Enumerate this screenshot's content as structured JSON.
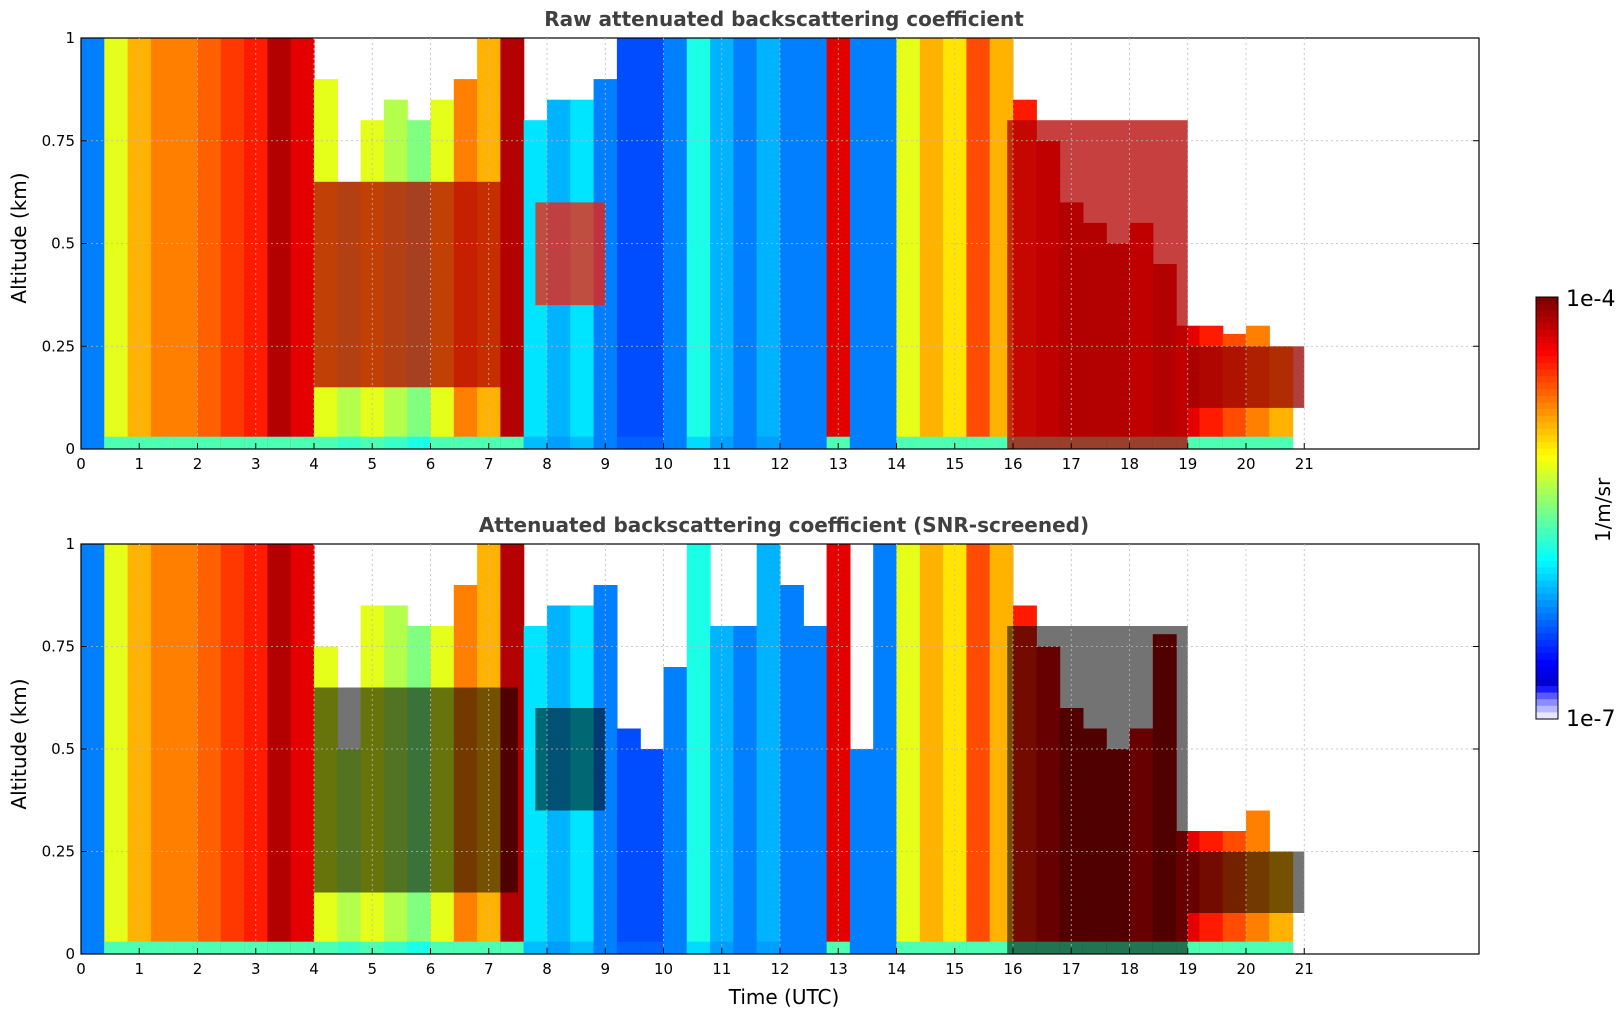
{
  "chart_data": [
    {
      "type": "heatmap",
      "title": "Raw attenuated backscattering coefficient",
      "xlabel": "",
      "ylabel": "Altitude (km)",
      "xlim": [
        0,
        24
      ],
      "ylim": [
        0,
        1
      ],
      "x_ticks": [
        "0",
        "1",
        "2",
        "3",
        "4",
        "5",
        "6",
        "7",
        "8",
        "9",
        "10",
        "11",
        "12",
        "13",
        "14",
        "15",
        "16",
        "17",
        "18",
        "19",
        "20",
        "21"
      ],
      "y_ticks": [
        "0",
        "0.25",
        "0.5",
        "0.75",
        "1"
      ],
      "grid": true,
      "data_end_time": 21,
      "masked_black": false,
      "time_hours": [
        0.2,
        0.6,
        1.0,
        1.4,
        1.8,
        2.2,
        2.6,
        3.0,
        3.4,
        3.8,
        4.2,
        4.6,
        5.0,
        5.4,
        5.8,
        6.2,
        6.6,
        7.0,
        7.4,
        7.8,
        8.2,
        8.6,
        9.0,
        9.4,
        9.8,
        10.2,
        10.6,
        11.0,
        11.4,
        11.8,
        12.2,
        12.6,
        13.0,
        13.4,
        13.8,
        14.2,
        14.6,
        15.0,
        15.4,
        15.8,
        16.2,
        16.6,
        17.0,
        17.4,
        17.8,
        18.2,
        18.6,
        19.0,
        19.4,
        19.8,
        20.2,
        20.6
      ],
      "band_level": [
        0.25,
        0.6,
        0.7,
        0.75,
        0.75,
        0.78,
        0.82,
        0.85,
        0.95,
        0.9,
        0.6,
        0.55,
        0.6,
        0.55,
        0.5,
        0.6,
        0.75,
        0.7,
        0.95,
        0.35,
        0.3,
        0.35,
        0.25,
        0.2,
        0.2,
        0.25,
        0.4,
        0.3,
        0.25,
        0.3,
        0.25,
        0.25,
        0.9,
        0.25,
        0.25,
        0.6,
        0.7,
        0.65,
        0.8,
        0.7,
        0.85,
        0.9,
        0.95,
        0.95,
        0.95,
        0.9,
        0.95,
        0.9,
        0.85,
        0.8,
        0.75,
        0.7
      ],
      "cloud_layers": [
        {
          "t_start": 4.0,
          "t_end": 7.5,
          "base_km": 0.15,
          "top_km": 0.65,
          "level": 0.95
        },
        {
          "t_start": 7.8,
          "t_end": 9.0,
          "base_km": 0.35,
          "top_km": 0.6,
          "level": 0.85
        },
        {
          "t_start": 15.9,
          "t_end": 19.0,
          "base_km": 0.0,
          "top_km": 0.8,
          "level": 0.95
        },
        {
          "t_start": 19.0,
          "t_end": 21.0,
          "base_km": 0.1,
          "top_km": 0.25,
          "level": 0.98
        }
      ],
      "signal_top_km": [
        1,
        1,
        1,
        1,
        1,
        1,
        1,
        1,
        1,
        1,
        0.9,
        0.65,
        0.8,
        0.85,
        0.8,
        0.85,
        0.9,
        1,
        1,
        0.8,
        0.85,
        0.85,
        0.9,
        1,
        1,
        1,
        1,
        1,
        1,
        1,
        1,
        1,
        1,
        1,
        1,
        1,
        1,
        1,
        1,
        1,
        0.85,
        0.75,
        0.6,
        0.55,
        0.5,
        0.55,
        0.45,
        0.3,
        0.3,
        0.28,
        0.3,
        0.25
      ]
    },
    {
      "type": "heatmap",
      "title": "Attenuated backscattering coefficient (SNR-screened)",
      "xlabel": "Time (UTC)",
      "ylabel": "Altitude (km)",
      "xlim": [
        0,
        24
      ],
      "ylim": [
        0,
        1
      ],
      "x_ticks": [
        "0",
        "1",
        "2",
        "3",
        "4",
        "5",
        "6",
        "7",
        "8",
        "9",
        "10",
        "11",
        "12",
        "13",
        "14",
        "15",
        "16",
        "17",
        "18",
        "19",
        "20",
        "21"
      ],
      "y_ticks": [
        "0",
        "0.25",
        "0.5",
        "0.75",
        "1"
      ],
      "grid": true,
      "data_end_time": 21,
      "masked_black": true,
      "time_hours": [
        0.2,
        0.6,
        1.0,
        1.4,
        1.8,
        2.2,
        2.6,
        3.0,
        3.4,
        3.8,
        4.2,
        4.6,
        5.0,
        5.4,
        5.8,
        6.2,
        6.6,
        7.0,
        7.4,
        7.8,
        8.2,
        8.6,
        9.0,
        9.4,
        9.8,
        10.2,
        10.6,
        11.0,
        11.4,
        11.8,
        12.2,
        12.6,
        13.0,
        13.4,
        13.8,
        14.2,
        14.6,
        15.0,
        15.4,
        15.8,
        16.2,
        16.6,
        17.0,
        17.4,
        17.8,
        18.2,
        18.6,
        19.0,
        19.4,
        19.8,
        20.2,
        20.6
      ],
      "band_level": [
        0.25,
        0.6,
        0.7,
        0.75,
        0.75,
        0.78,
        0.82,
        0.85,
        0.95,
        0.9,
        0.6,
        0.55,
        0.6,
        0.55,
        0.5,
        0.6,
        0.75,
        0.7,
        0.95,
        0.35,
        0.3,
        0.35,
        0.25,
        0.2,
        0.2,
        0.25,
        0.4,
        0.3,
        0.25,
        0.3,
        0.25,
        0.25,
        0.9,
        0.25,
        0.25,
        0.6,
        0.7,
        0.65,
        0.8,
        0.7,
        0.85,
        0.9,
        0.95,
        0.95,
        0.95,
        0.9,
        0.95,
        0.9,
        0.85,
        0.8,
        0.75,
        0.7
      ],
      "cloud_layers": [
        {
          "t_start": 4.0,
          "t_end": 7.5,
          "base_km": 0.15,
          "top_km": 0.65,
          "level": 0.95
        },
        {
          "t_start": 7.8,
          "t_end": 9.0,
          "base_km": 0.35,
          "top_km": 0.6,
          "level": 0.85
        },
        {
          "t_start": 15.9,
          "t_end": 19.0,
          "base_km": 0.0,
          "top_km": 0.8,
          "level": 0.95
        },
        {
          "t_start": 19.0,
          "t_end": 21.0,
          "base_km": 0.1,
          "top_km": 0.25,
          "level": 0.98
        }
      ],
      "signal_top_km": [
        1,
        1,
        1,
        1,
        1,
        1,
        1,
        1,
        1,
        1,
        0.75,
        0.5,
        0.85,
        0.85,
        0.8,
        0.8,
        0.9,
        1,
        1,
        0.8,
        0.85,
        0.85,
        0.9,
        0.55,
        0.5,
        0.7,
        1,
        0.8,
        0.8,
        1,
        0.9,
        0.8,
        1,
        0.5,
        1,
        1,
        1,
        1,
        1,
        1,
        0.85,
        0.75,
        0.6,
        0.55,
        0.5,
        0.55,
        0.78,
        0.3,
        0.3,
        0.3,
        0.35,
        0.25
      ]
    }
  ],
  "colorbar": {
    "max_label": "1e-4",
    "min_label": "1e-7",
    "unit_label": "1/m/sr",
    "colormap": "jet"
  }
}
